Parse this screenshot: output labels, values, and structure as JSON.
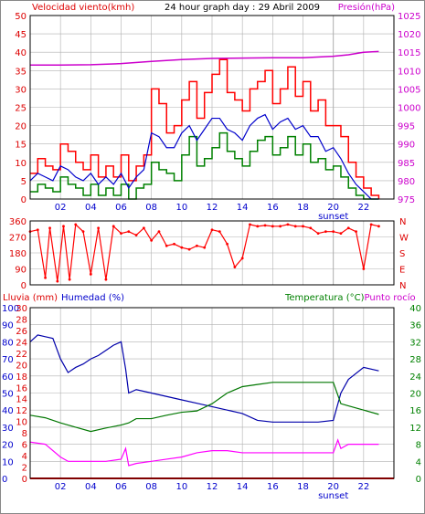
{
  "header": {
    "wind_label": "Velocidad viento(kmh)",
    "title": "24 hour graph day : 29 Abril 2009",
    "pressure_label": "Presión(hPa)"
  },
  "hour_labels": [
    "02",
    "04",
    "06",
    "08",
    "10",
    "12",
    "14",
    "16",
    "18",
    "20",
    "22"
  ],
  "sunset_label": "sunset",
  "colors": {
    "wind_gust": "#ff0000",
    "wind_avg": "#0000cc",
    "wind_low": "#008000",
    "pressure": "#cc00cc",
    "direction": "#ff0000",
    "humidity": "#0000aa",
    "temperature": "#007700",
    "dew_point": "#ff00ff",
    "rain": "#ff0000",
    "grid": "#b0b0b0",
    "frame": "#000000",
    "label_red": "#dd0000",
    "label_blue": "#0000cc",
    "label_green": "#008000",
    "label_magenta": "#cc00cc"
  },
  "chart_data": [
    {
      "type": "line",
      "panel": "wind_pressure",
      "xlim": [
        0,
        24
      ],
      "y_left_ticks": [
        0,
        5,
        10,
        15,
        20,
        25,
        30,
        35,
        40,
        45,
        50
      ],
      "y_left_lim": [
        0,
        50
      ],
      "y_right_ticks": [
        975,
        980,
        985,
        990,
        995,
        1000,
        1005,
        1010,
        1015,
        1020,
        1025
      ],
      "y_right_lim": [
        975,
        1025
      ],
      "ylabel_left": "Velocidad viento(kmh)",
      "ylabel_right": "Presión(hPa)",
      "grid": true,
      "series": [
        {
          "name": "gust",
          "axis": "left",
          "style": "steps",
          "x": [
            0,
            0.5,
            1,
            1.5,
            2,
            2.5,
            3,
            3.5,
            4,
            4.5,
            5,
            5.5,
            6,
            6.5,
            7,
            7.5,
            8,
            8.5,
            9,
            9.5,
            10,
            10.5,
            11,
            11.5,
            12,
            12.5,
            13,
            13.5,
            14,
            14.5,
            15,
            15.5,
            16,
            16.5,
            17,
            17.5,
            18,
            18.5,
            19,
            19.5,
            20,
            20.5,
            21,
            21.5,
            22,
            22.5,
            23
          ],
          "values": [
            7,
            11,
            9,
            8,
            15,
            13,
            10,
            8,
            12,
            6,
            9,
            6,
            12,
            5,
            9,
            12,
            30,
            26,
            18,
            20,
            27,
            32,
            22,
            29,
            34,
            38,
            29,
            27,
            24,
            30,
            32,
            35,
            26,
            30,
            36,
            28,
            32,
            24,
            27,
            20,
            20,
            17,
            10,
            6,
            3,
            1,
            0
          ]
        },
        {
          "name": "average",
          "axis": "left",
          "x": [
            0,
            0.5,
            1,
            1.5,
            2,
            2.5,
            3,
            3.5,
            4,
            4.5,
            5,
            5.5,
            6,
            6.5,
            7,
            7.5,
            8,
            8.5,
            9,
            9.5,
            10,
            10.5,
            11,
            11.5,
            12,
            12.5,
            13,
            13.5,
            14,
            14.5,
            15,
            15.5,
            16,
            16.5,
            17,
            17.5,
            18,
            18.5,
            19,
            19.5,
            20,
            20.5,
            21,
            21.5,
            22,
            22.5,
            23
          ],
          "values": [
            5,
            7,
            6,
            5,
            9,
            8,
            6,
            5,
            7,
            4,
            6,
            4,
            7,
            3,
            6,
            8,
            18,
            17,
            14,
            14,
            18,
            20,
            16,
            19,
            22,
            22,
            19,
            18,
            16,
            20,
            22,
            23,
            19,
            21,
            22,
            19,
            20,
            17,
            17,
            13,
            14,
            11,
            7,
            4,
            2,
            0,
            0
          ]
        },
        {
          "name": "low",
          "axis": "left",
          "style": "steps",
          "x": [
            0,
            0.5,
            1,
            1.5,
            2,
            2.5,
            3,
            3.5,
            4,
            4.5,
            5,
            5.5,
            6,
            6.5,
            7,
            7.5,
            8,
            8.5,
            9,
            9.5,
            10,
            10.5,
            11,
            11.5,
            12,
            12.5,
            13,
            13.5,
            14,
            14.5,
            15,
            15.5,
            16,
            16.5,
            17,
            17.5,
            18,
            18.5,
            19,
            19.5,
            20,
            20.5,
            21,
            21.5,
            22,
            22.5,
            23
          ],
          "values": [
            2,
            4,
            3,
            2,
            6,
            4,
            3,
            1,
            4,
            1,
            3,
            1,
            4,
            0,
            3,
            4,
            10,
            8,
            7,
            5,
            12,
            17,
            9,
            11,
            14,
            18,
            13,
            11,
            9,
            13,
            16,
            17,
            12,
            14,
            17,
            12,
            15,
            10,
            11,
            8,
            9,
            6,
            3,
            1,
            0,
            0,
            0
          ]
        },
        {
          "name": "pressure",
          "axis": "right",
          "x": [
            0,
            2,
            4,
            6,
            8,
            10,
            12,
            14,
            16,
            18,
            20,
            21,
            22,
            23
          ],
          "values": [
            1011.5,
            1011.5,
            1011.6,
            1011.9,
            1012.5,
            1013,
            1013.3,
            1013.4,
            1013.5,
            1013.5,
            1013.9,
            1014.3,
            1015,
            1015.2
          ]
        }
      ]
    },
    {
      "type": "scatter",
      "panel": "wind_direction",
      "xlim": [
        0,
        24
      ],
      "y_left_ticks": [
        0,
        90,
        180,
        270,
        360
      ],
      "y_left_lim": [
        0,
        360
      ],
      "y_right_ticks": [
        "N",
        "W",
        "S",
        "E",
        "N"
      ],
      "grid": true,
      "series": [
        {
          "name": "direction",
          "x": [
            0,
            0.5,
            1,
            1.3,
            1.8,
            2.2,
            2.6,
            3,
            3.5,
            4,
            4.5,
            5,
            5.5,
            6,
            6.5,
            7,
            7.5,
            8,
            8.5,
            9,
            9.5,
            10,
            10.5,
            11,
            11.5,
            12,
            12.5,
            13,
            13.5,
            14,
            14.5,
            15,
            15.5,
            16,
            16.5,
            17,
            17.5,
            18,
            18.5,
            19,
            19.5,
            20,
            20.5,
            21,
            21.5,
            22,
            22.5,
            23
          ],
          "values": [
            300,
            310,
            40,
            320,
            20,
            330,
            30,
            340,
            300,
            60,
            320,
            30,
            330,
            290,
            300,
            280,
            320,
            250,
            300,
            220,
            230,
            210,
            200,
            220,
            210,
            310,
            300,
            230,
            100,
            150,
            340,
            330,
            335,
            330,
            330,
            340,
            330,
            330,
            320,
            290,
            300,
            300,
            290,
            320,
            300,
            90,
            340,
            330
          ]
        }
      ]
    },
    {
      "type": "line",
      "panel": "humidity_temp",
      "xlim": [
        0,
        24
      ],
      "y_left_ticks": [
        0,
        10,
        20,
        30,
        40,
        50,
        60,
        70,
        80,
        90,
        100
      ],
      "y_left_lim": [
        0,
        100
      ],
      "y_rain_ticks": [
        0,
        2,
        4,
        6,
        8,
        10,
        12,
        14,
        16,
        18,
        20,
        22,
        24,
        26,
        28,
        30
      ],
      "y_rain_lim": [
        0,
        30
      ],
      "y_right_ticks": [
        0,
        4,
        8,
        12,
        16,
        20,
        24,
        28,
        32,
        36,
        40
      ],
      "y_right_lim": [
        0,
        40
      ],
      "ylabel_left": "Humedad (%)",
      "ylabel_rain": "Lluvia (mm)",
      "ylabel_right": "Temperatura (°C)Punto rocío",
      "grid": true,
      "series": [
        {
          "name": "humidity",
          "axis": "left",
          "x": [
            0,
            0.5,
            1,
            1.5,
            2,
            2.5,
            3,
            3.5,
            4,
            4.5,
            5,
            5.5,
            6,
            6.3,
            6.5,
            7,
            8,
            9,
            10,
            11,
            12,
            13,
            14,
            15,
            16,
            17,
            18,
            19,
            20,
            20.5,
            21,
            22,
            23
          ],
          "values": [
            80,
            84,
            83,
            82,
            70,
            62,
            65,
            67,
            70,
            72,
            75,
            78,
            80,
            64,
            50,
            52,
            50,
            48,
            46,
            44,
            42,
            40,
            38,
            34,
            33,
            33,
            33,
            33,
            34,
            50,
            58,
            65,
            63
          ]
        },
        {
          "name": "temperature",
          "axis": "right",
          "x": [
            0,
            1,
            2,
            3,
            4,
            5,
            6,
            6.5,
            7,
            8,
            9,
            10,
            11,
            12,
            13,
            14,
            15,
            16,
            17,
            18,
            19,
            20,
            20.5,
            21,
            22,
            23
          ],
          "values": [
            14.8,
            14.2,
            13,
            12,
            11,
            11.8,
            12.5,
            13,
            14,
            14,
            14.8,
            15.5,
            15.8,
            17.5,
            20,
            21.5,
            22,
            22.5,
            22.5,
            22.5,
            22.5,
            22.5,
            17.5,
            17,
            16,
            15
          ]
        },
        {
          "name": "dew_point",
          "axis": "right",
          "x": [
            0,
            1,
            2,
            2.5,
            3,
            4,
            5,
            6,
            6.3,
            6.5,
            7,
            8,
            9,
            10,
            11,
            12,
            13,
            14,
            15,
            16,
            17,
            18,
            19,
            20,
            20.3,
            20.5,
            21,
            22,
            23
          ],
          "values": [
            8.5,
            8,
            5,
            4,
            4,
            4,
            4,
            4.5,
            7,
            3,
            3.5,
            4,
            4.5,
            5,
            6,
            6.5,
            6.5,
            6,
            6,
            6,
            6,
            6,
            6,
            6,
            9,
            7,
            8,
            8,
            8
          ]
        },
        {
          "name": "rain",
          "axis": "rain",
          "x": [
            0,
            24
          ],
          "values": [
            0,
            0
          ]
        }
      ]
    }
  ]
}
